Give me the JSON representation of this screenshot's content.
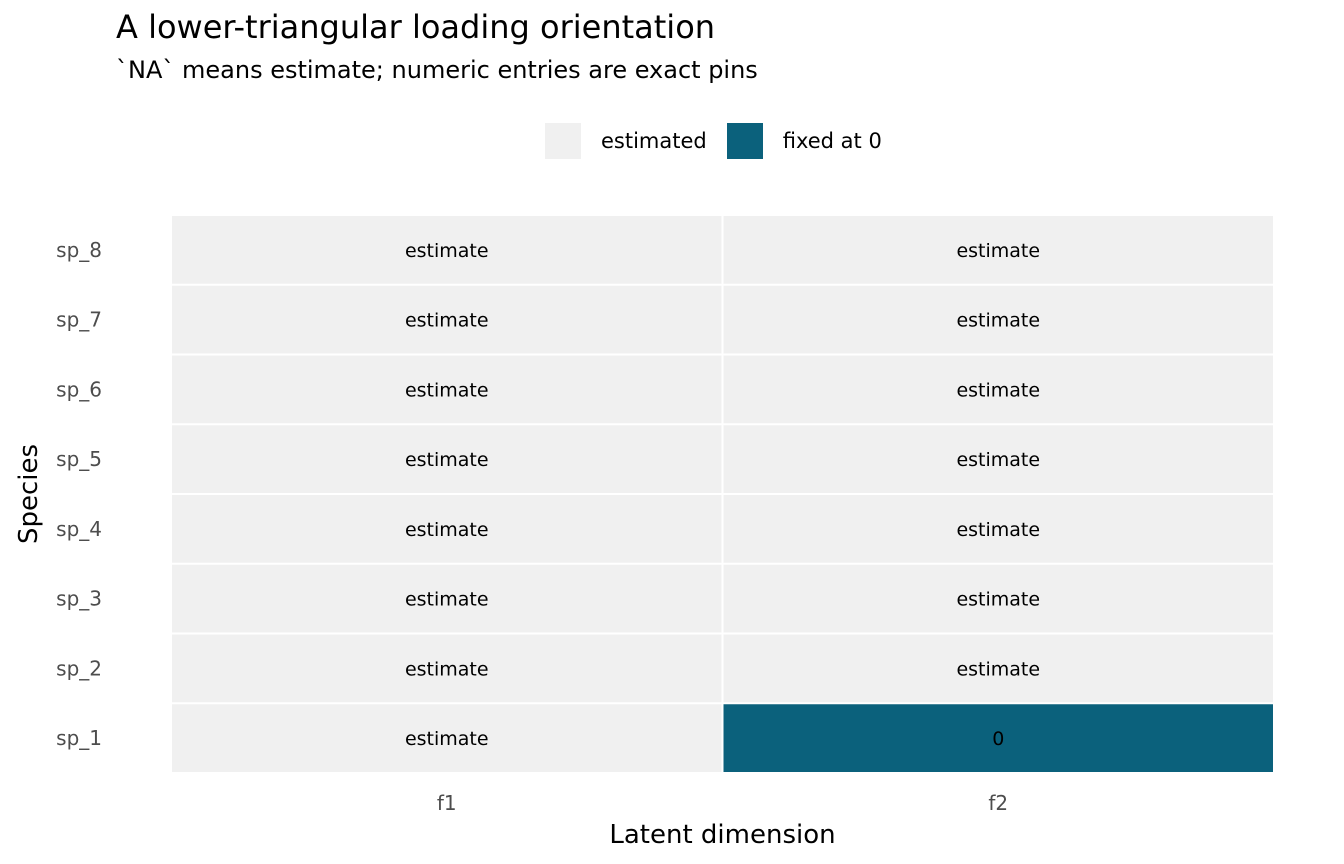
{
  "chart_data": {
    "type": "heatmap",
    "title": "A lower-triangular loading orientation",
    "subtitle": "`NA` means estimate; numeric entries are exact pins",
    "xlabel": "Latent dimension",
    "ylabel": "Species",
    "x_categories": [
      "f1",
      "f2"
    ],
    "y_categories": [
      "sp_1",
      "sp_2",
      "sp_3",
      "sp_4",
      "sp_5",
      "sp_6",
      "sp_7",
      "sp_8"
    ],
    "legend": {
      "position": "top",
      "entries": [
        {
          "label": "estimated",
          "color": "#f0f0f0"
        },
        {
          "label": "fixed at 0",
          "color": "#0b617c"
        }
      ]
    },
    "cells": [
      {
        "x": "f1",
        "y": "sp_1",
        "status": "estimated",
        "label": "estimate"
      },
      {
        "x": "f2",
        "y": "sp_1",
        "status": "fixed at 0",
        "label": "0"
      },
      {
        "x": "f1",
        "y": "sp_2",
        "status": "estimated",
        "label": "estimate"
      },
      {
        "x": "f2",
        "y": "sp_2",
        "status": "estimated",
        "label": "estimate"
      },
      {
        "x": "f1",
        "y": "sp_3",
        "status": "estimated",
        "label": "estimate"
      },
      {
        "x": "f2",
        "y": "sp_3",
        "status": "estimated",
        "label": "estimate"
      },
      {
        "x": "f1",
        "y": "sp_4",
        "status": "estimated",
        "label": "estimate"
      },
      {
        "x": "f2",
        "y": "sp_4",
        "status": "estimated",
        "label": "estimate"
      },
      {
        "x": "f1",
        "y": "sp_5",
        "status": "estimated",
        "label": "estimate"
      },
      {
        "x": "f2",
        "y": "sp_5",
        "status": "estimated",
        "label": "estimate"
      },
      {
        "x": "f1",
        "y": "sp_6",
        "status": "estimated",
        "label": "estimate"
      },
      {
        "x": "f2",
        "y": "sp_6",
        "status": "estimated",
        "label": "estimate"
      },
      {
        "x": "f1",
        "y": "sp_7",
        "status": "estimated",
        "label": "estimate"
      },
      {
        "x": "f2",
        "y": "sp_7",
        "status": "estimated",
        "label": "estimate"
      },
      {
        "x": "f1",
        "y": "sp_8",
        "status": "estimated",
        "label": "estimate"
      },
      {
        "x": "f2",
        "y": "sp_8",
        "status": "estimated",
        "label": "estimate"
      }
    ]
  }
}
